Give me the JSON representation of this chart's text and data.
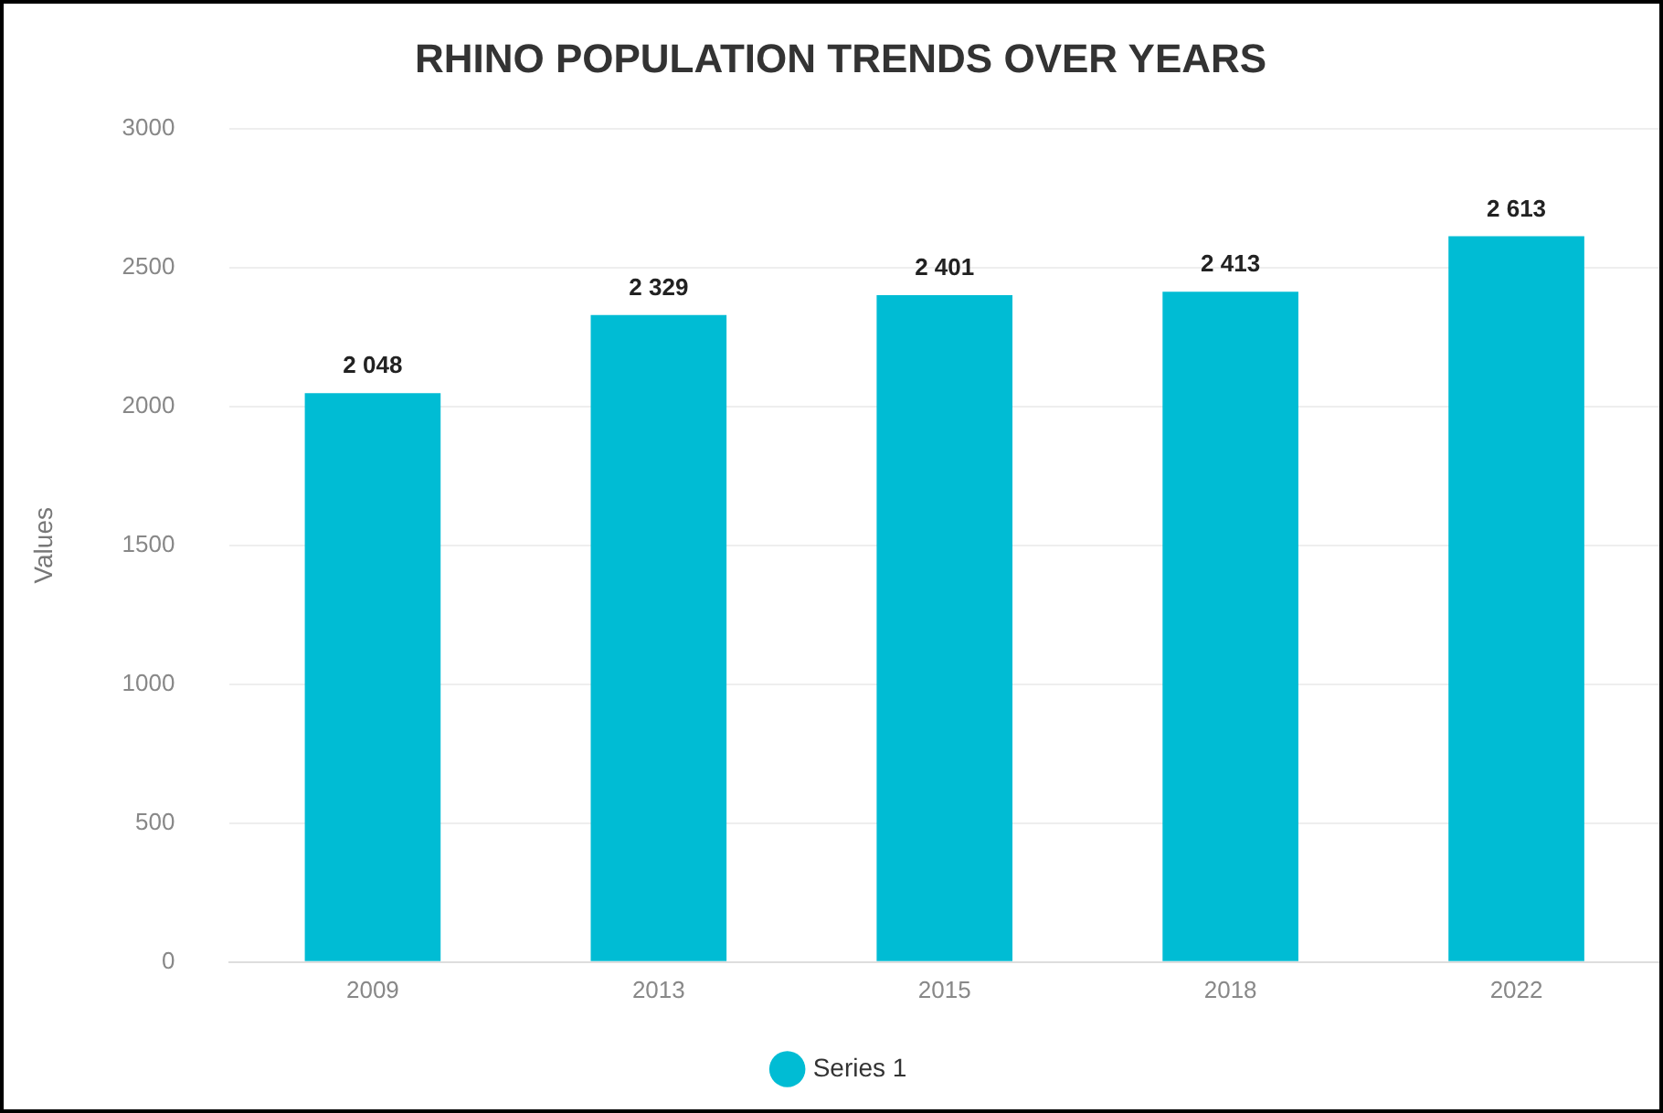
{
  "chart_data": {
    "type": "bar",
    "title": "RHINO POPULATION TRENDS OVER YEARS",
    "ylabel": "Values",
    "categories": [
      "2009",
      "2013",
      "2015",
      "2018",
      "2022"
    ],
    "series": [
      {
        "name": "Series 1",
        "color": "#00bcd4",
        "values": [
          2048,
          2329,
          2401,
          2413,
          2613
        ],
        "value_labels": [
          "2 048",
          "2 329",
          "2 401",
          "2 413",
          "2 613"
        ]
      }
    ],
    "ylim": [
      0,
      3000
    ],
    "yticks": [
      0,
      500,
      1000,
      1500,
      2000,
      2500,
      3000
    ],
    "grid": "y",
    "legend": "bottom"
  }
}
